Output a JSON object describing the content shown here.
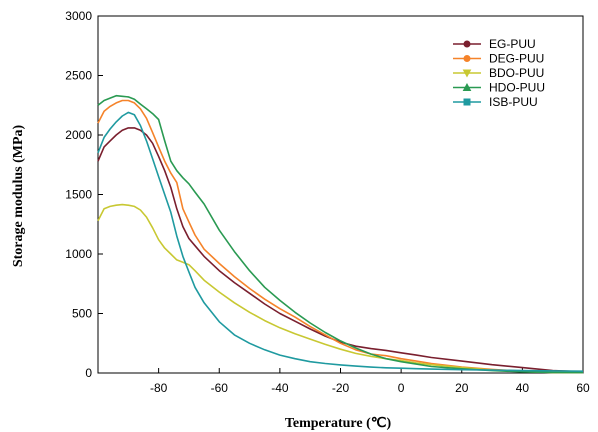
{
  "chart_data": {
    "type": "line",
    "title": "",
    "xlabel": "Temperature (℃)",
    "ylabel": "Storage modulus (MPa)",
    "xlim": [
      -100,
      60
    ],
    "ylim": [
      0,
      3000
    ],
    "xticks": [
      -80,
      -60,
      -40,
      -20,
      0,
      20,
      40,
      60
    ],
    "yticks": [
      0,
      500,
      1000,
      1500,
      2000,
      2500,
      3000
    ],
    "grid": false,
    "legend_position": "top-right",
    "series": [
      {
        "name": "EG-PUU",
        "color": "#7a1f2e",
        "marker": "circle",
        "x": [
          -100,
          -98,
          -96,
          -94,
          -92,
          -90,
          -88,
          -86,
          -84,
          -82,
          -80,
          -78,
          -76,
          -74,
          -72,
          -70,
          -68,
          -65,
          -60,
          -55,
          -50,
          -45,
          -40,
          -35,
          -30,
          -25,
          -20,
          -15,
          -10,
          -5,
          0,
          5,
          10,
          20,
          30,
          40,
          50,
          60
        ],
        "y": [
          1780,
          1900,
          1950,
          2000,
          2040,
          2060,
          2060,
          2040,
          2000,
          1930,
          1820,
          1700,
          1560,
          1380,
          1230,
          1130,
          1070,
          980,
          860,
          760,
          670,
          580,
          500,
          435,
          370,
          310,
          260,
          225,
          205,
          190,
          170,
          150,
          130,
          100,
          70,
          45,
          20,
          10
        ]
      },
      {
        "name": "DEG-PUU",
        "color": "#f5832a",
        "marker": "circle",
        "x": [
          -100,
          -98,
          -96,
          -94,
          -92,
          -90,
          -88,
          -86,
          -84,
          -82,
          -80,
          -78,
          -76,
          -74,
          -72,
          -70,
          -68,
          -65,
          -60,
          -55,
          -50,
          -45,
          -40,
          -35,
          -30,
          -25,
          -20,
          -15,
          -10,
          -5,
          0,
          5,
          10,
          20,
          30,
          40,
          50,
          60
        ],
        "y": [
          2100,
          2200,
          2240,
          2270,
          2290,
          2290,
          2270,
          2220,
          2140,
          2020,
          1900,
          1780,
          1680,
          1600,
          1380,
          1270,
          1160,
          1040,
          920,
          810,
          710,
          620,
          540,
          470,
          390,
          320,
          250,
          195,
          160,
          145,
          120,
          100,
          80,
          50,
          30,
          15,
          5,
          5
        ]
      },
      {
        "name": "BDO-PUU",
        "color": "#c8c832",
        "marker": "triangle-down",
        "x": [
          -100,
          -98,
          -96,
          -94,
          -92,
          -90,
          -88,
          -86,
          -84,
          -82,
          -80,
          -78,
          -76,
          -74,
          -72,
          -70,
          -68,
          -65,
          -60,
          -55,
          -50,
          -45,
          -40,
          -35,
          -30,
          -25,
          -20,
          -15,
          -10,
          -5,
          0,
          5,
          10,
          20,
          30,
          40,
          50,
          60
        ],
        "y": [
          1280,
          1380,
          1400,
          1410,
          1415,
          1410,
          1400,
          1370,
          1310,
          1220,
          1120,
          1050,
          1000,
          950,
          930,
          910,
          860,
          780,
          680,
          590,
          510,
          440,
          380,
          330,
          285,
          240,
          200,
          165,
          140,
          120,
          105,
          85,
          70,
          45,
          25,
          12,
          5,
          3
        ]
      },
      {
        "name": "HDO-PUU",
        "color": "#2a9a52",
        "marker": "triangle-up",
        "x": [
          -100,
          -98,
          -96,
          -94,
          -92,
          -90,
          -88,
          -86,
          -84,
          -82,
          -80,
          -78,
          -76,
          -74,
          -72,
          -70,
          -68,
          -65,
          -60,
          -55,
          -50,
          -45,
          -40,
          -35,
          -30,
          -25,
          -20,
          -15,
          -10,
          -5,
          0,
          5,
          10,
          20,
          30,
          40,
          50,
          60
        ],
        "y": [
          2250,
          2290,
          2310,
          2330,
          2325,
          2320,
          2300,
          2260,
          2220,
          2180,
          2130,
          1950,
          1780,
          1700,
          1640,
          1590,
          1520,
          1420,
          1200,
          1020,
          860,
          720,
          610,
          510,
          420,
          340,
          270,
          210,
          160,
          120,
          95,
          75,
          55,
          35,
          20,
          10,
          5,
          3
        ]
      },
      {
        "name": "ISB-PUU",
        "color": "#1f9aa0",
        "marker": "square",
        "x": [
          -100,
          -98,
          -96,
          -94,
          -92,
          -90,
          -88,
          -86,
          -84,
          -82,
          -80,
          -78,
          -76,
          -74,
          -72,
          -70,
          -68,
          -65,
          -60,
          -55,
          -50,
          -45,
          -40,
          -35,
          -30,
          -25,
          -20,
          -15,
          -10,
          -5,
          0,
          5,
          10,
          20,
          30,
          40,
          50,
          60
        ],
        "y": [
          1850,
          1980,
          2050,
          2110,
          2160,
          2190,
          2170,
          2080,
          1950,
          1800,
          1650,
          1500,
          1350,
          1150,
          980,
          850,
          720,
          590,
          430,
          320,
          250,
          195,
          150,
          120,
          95,
          80,
          68,
          58,
          50,
          44,
          40,
          36,
          33,
          28,
          24,
          20,
          18,
          15
        ]
      }
    ]
  }
}
